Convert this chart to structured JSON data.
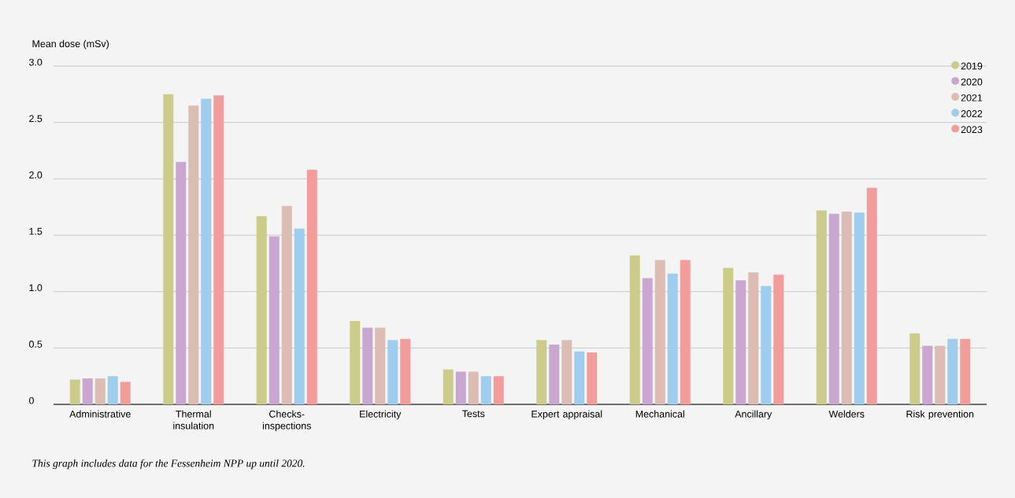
{
  "chart_data": {
    "type": "bar",
    "ylabel": "Mean dose (mSv)",
    "categories": [
      "Administrative",
      "Thermal insulation",
      "Checks-inspections",
      "Electricity",
      "Tests",
      "Expert appraisal",
      "Mechanical",
      "Ancillary",
      "Welders",
      "Risk prevention"
    ],
    "series": [
      {
        "name": "2019",
        "color": "#cccc8a",
        "values": [
          0.22,
          2.75,
          1.67,
          0.74,
          0.31,
          0.57,
          1.32,
          1.21,
          1.72,
          0.63
        ]
      },
      {
        "name": "2020",
        "color": "#c9a7d0",
        "values": [
          0.23,
          2.15,
          1.49,
          0.68,
          0.29,
          0.53,
          1.12,
          1.1,
          1.69,
          0.52
        ]
      },
      {
        "name": "2021",
        "color": "#dbbdb3",
        "values": [
          0.23,
          2.65,
          1.76,
          0.68,
          0.29,
          0.57,
          1.28,
          1.17,
          1.71,
          0.52
        ]
      },
      {
        "name": "2022",
        "color": "#9fcdee",
        "values": [
          0.25,
          2.71,
          1.56,
          0.57,
          0.25,
          0.47,
          1.16,
          1.05,
          1.7,
          0.58
        ]
      },
      {
        "name": "2023",
        "color": "#f29d9c",
        "values": [
          0.2,
          2.74,
          2.08,
          0.58,
          0.25,
          0.46,
          1.28,
          1.15,
          1.92,
          0.58
        ]
      }
    ],
    "ylim": [
      0,
      3
    ],
    "yticks": [
      0,
      0.5,
      {
        "value": 1,
        "label": "1.0"
      },
      1.5,
      {
        "value": 2,
        "label": "2.0"
      },
      2.5,
      {
        "value": 3,
        "label": "3.0"
      }
    ],
    "grid": "y",
    "legend": "top right",
    "annotations": [
      "This graph includes data for the Fessenheim NPP up until 2020."
    ]
  }
}
